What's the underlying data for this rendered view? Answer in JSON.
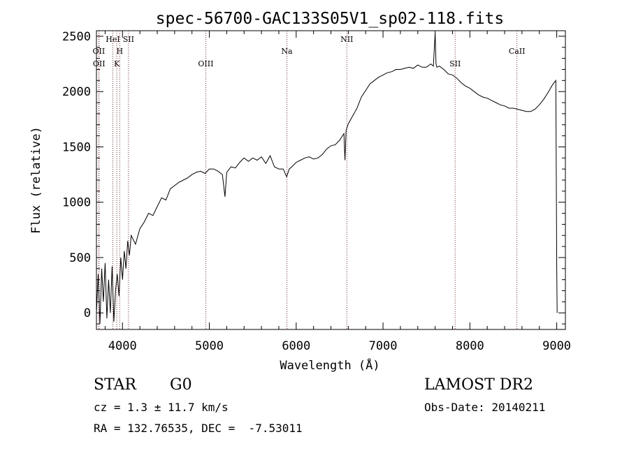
{
  "chart_data": {
    "type": "line",
    "title": "spec-56700-GAC133S05V1_sp02-118.fits",
    "xlabel": "Wavelength (Å)",
    "ylabel": "Flux (relative)",
    "xlim": [
      3700,
      9100
    ],
    "ylim": [
      -150,
      2550
    ],
    "xticks": [
      4000,
      5000,
      6000,
      7000,
      8000,
      9000
    ],
    "yticks": [
      0,
      500,
      1000,
      1500,
      2000,
      2500
    ],
    "series": [
      {
        "x": [
          3700,
          3720,
          3740,
          3760,
          3780,
          3800,
          3820,
          3840,
          3860,
          3880,
          3900,
          3920,
          3940,
          3960,
          3980,
          4000,
          4020,
          4040,
          4060,
          4080,
          4100,
          4150,
          4200,
          4250,
          4300,
          4350,
          4400,
          4450,
          4500,
          4550,
          4600,
          4650,
          4700,
          4750,
          4800,
          4850,
          4900,
          4950,
          5000,
          5050,
          5100,
          5150,
          5180,
          5200,
          5250,
          5300,
          5350,
          5400,
          5450,
          5500,
          5550,
          5600,
          5650,
          5700,
          5750,
          5800,
          5850,
          5890,
          5920,
          5950,
          6000,
          6050,
          6100,
          6150,
          6200,
          6250,
          6300,
          6350,
          6400,
          6450,
          6500,
          6550,
          6562,
          6575,
          6600,
          6650,
          6700,
          6750,
          6800,
          6850,
          6900,
          6950,
          7000,
          7050,
          7100,
          7150,
          7200,
          7250,
          7300,
          7350,
          7400,
          7450,
          7500,
          7550,
          7580,
          7600,
          7610,
          7620,
          7650,
          7700,
          7750,
          7800,
          7850,
          7900,
          7950,
          8000,
          8050,
          8100,
          8150,
          8200,
          8250,
          8300,
          8350,
          8400,
          8450,
          8500,
          8550,
          8600,
          8650,
          8700,
          8750,
          8800,
          8850,
          8900,
          8950,
          8990,
          9000,
          9005
        ],
        "y": [
          0,
          350,
          -100,
          400,
          100,
          450,
          -50,
          300,
          0,
          420,
          -80,
          200,
          350,
          150,
          500,
          300,
          560,
          400,
          650,
          520,
          700,
          620,
          760,
          820,
          900,
          880,
          960,
          1040,
          1020,
          1120,
          1150,
          1180,
          1200,
          1220,
          1250,
          1270,
          1280,
          1260,
          1300,
          1300,
          1280,
          1250,
          1050,
          1270,
          1320,
          1310,
          1360,
          1400,
          1370,
          1400,
          1380,
          1410,
          1350,
          1420,
          1320,
          1300,
          1300,
          1230,
          1300,
          1320,
          1360,
          1380,
          1400,
          1410,
          1390,
          1400,
          1430,
          1480,
          1510,
          1520,
          1560,
          1620,
          1380,
          1650,
          1710,
          1780,
          1850,
          1950,
          2010,
          2070,
          2100,
          2130,
          2150,
          2170,
          2180,
          2200,
          2200,
          2210,
          2220,
          2210,
          2240,
          2220,
          2220,
          2250,
          2230,
          2530,
          2250,
          2220,
          2230,
          2200,
          2160,
          2150,
          2120,
          2080,
          2050,
          2030,
          2000,
          1970,
          1950,
          1940,
          1920,
          1900,
          1880,
          1870,
          1850,
          1850,
          1840,
          1830,
          1820,
          1820,
          1840,
          1880,
          1930,
          1990,
          2060,
          2100,
          400,
          0
        ]
      }
    ],
    "line_markers": [
      {
        "label": "OII",
        "x": 3727,
        "row": 1
      },
      {
        "label": "OII",
        "x": 3730,
        "row": 2
      },
      {
        "label": "HeI",
        "x": 3889,
        "row": 0
      },
      {
        "label": "H",
        "x": 3968,
        "row": 1
      },
      {
        "label": "K",
        "x": 3934,
        "row": 2
      },
      {
        "label": "SII",
        "x": 4069,
        "row": 0
      },
      {
        "label": "OIII",
        "x": 4959,
        "row": 2
      },
      {
        "label": "Na",
        "x": 5893,
        "row": 1
      },
      {
        "label": "NII",
        "x": 6583,
        "row": 0
      },
      {
        "label": "SII",
        "x": 7830,
        "row": 2
      },
      {
        "label": "CaII",
        "x": 8542,
        "row": 1
      }
    ],
    "grid": false
  },
  "info": {
    "class": "STAR",
    "subclass": "G0",
    "survey": "LAMOST DR2",
    "cz": "cz = 1.3 ± 11.7 km/s",
    "obs_date": "Obs-Date: 20140211",
    "radec": "RA = 132.76535, DEC =  -7.53011"
  },
  "colors": {
    "line": "#000000",
    "marker": "#b22222"
  }
}
